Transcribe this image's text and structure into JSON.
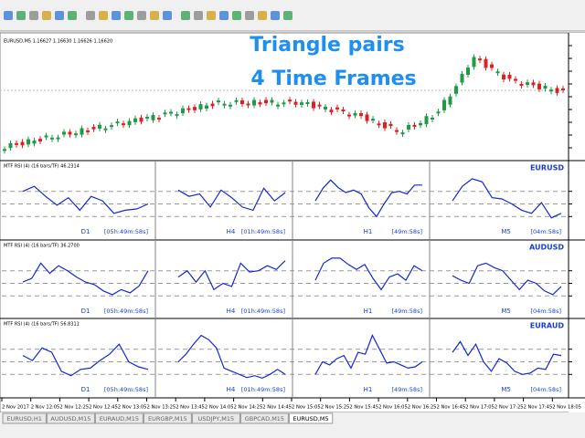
{
  "main_chart": {
    "header": "EURUSD,M5  1.16627 1.16630 1.16626 1.16620",
    "overlay_title": [
      "Triangle pairs",
      "4 Time Frames"
    ]
  },
  "rsi_ylim": [
    0,
    100
  ],
  "rsi_levels": [
    30,
    50,
    70
  ],
  "rsi_panes": [
    {
      "header": "MTF RSI (4) (16 bars/TF) 46.2314",
      "pair": "EURUSD",
      "cells": [
        {
          "timeframe": "D1",
          "timer": "[05h:49m:58s]",
          "values": [
            70,
            78,
            62,
            48,
            60,
            40,
            62,
            55,
            35,
            40,
            42,
            50
          ]
        },
        {
          "timeframe": "H4",
          "timer": "[01h:49m:58s]",
          "values": [
            72,
            62,
            66,
            45,
            72,
            60,
            45,
            40,
            75,
            55,
            68
          ]
        },
        {
          "timeframe": "H1",
          "timer": "[49m:58s]",
          "values": [
            55,
            75,
            88,
            76,
            68,
            72,
            66,
            44,
            30,
            50,
            68,
            70,
            66,
            80,
            80
          ]
        },
        {
          "timeframe": "M5",
          "timer": "[04m:58s]",
          "values": [
            55,
            78,
            90,
            85,
            60,
            58,
            50,
            40,
            35,
            52,
            28,
            35
          ]
        }
      ]
    },
    {
      "header": "MTF RSI (4) (16 bars/TF) 36.2700",
      "pair": "AUDUSD",
      "cells": [
        {
          "timeframe": "D1",
          "timer": "[05h:49m:58s]",
          "values": [
            52,
            58,
            82,
            66,
            78,
            70,
            60,
            52,
            48,
            38,
            32,
            40,
            35,
            46,
            70
          ]
        },
        {
          "timeframe": "H4",
          "timer": "[01h:49m:58s]",
          "values": [
            60,
            70,
            52,
            70,
            40,
            50,
            45,
            82,
            68,
            70,
            78,
            72,
            86
          ]
        },
        {
          "timeframe": "H1",
          "timer": "[49m:58s]",
          "values": [
            55,
            82,
            90,
            90,
            80,
            72,
            80,
            58,
            40,
            60,
            65,
            55,
            78,
            70
          ]
        },
        {
          "timeframe": "M5",
          "timer": "[04m:58s]",
          "values": [
            62,
            55,
            50,
            78,
            82,
            75,
            70,
            55,
            40,
            55,
            50,
            38,
            32,
            45
          ]
        }
      ]
    },
    {
      "header": "MTF RSI (4) (16 bars/TF) 56.8311",
      "pair": "EURAUD",
      "cells": [
        {
          "timeframe": "D1",
          "timer": "[05h:49m:58s]",
          "values": [
            60,
            52,
            72,
            65,
            35,
            28,
            38,
            40,
            52,
            62,
            78,
            50,
            42,
            38
          ]
        },
        {
          "timeframe": "H4",
          "timer": "[01h:49m:58s]",
          "values": [
            50,
            62,
            78,
            92,
            85,
            72,
            40,
            35,
            30,
            25,
            28,
            24,
            30,
            38,
            30
          ]
        },
        {
          "timeframe": "H1",
          "timer": "[49m:58s]",
          "values": [
            30,
            50,
            45,
            55,
            60,
            40,
            65,
            62,
            92,
            70,
            48,
            50,
            45,
            40,
            42,
            50
          ]
        },
        {
          "timeframe": "M5",
          "timer": "[04m:58s]",
          "values": [
            65,
            82,
            60,
            78,
            50,
            35,
            55,
            48,
            35,
            30,
            32,
            40,
            38,
            62,
            60
          ]
        }
      ]
    }
  ],
  "time_axis": [
    "2 Nov 2017",
    "2 Nov 12:05",
    "2 Nov 12:25",
    "2 Nov 12:45",
    "2 Nov 13:05",
    "2 Nov 13:25",
    "2 Nov 13:45",
    "2 Nov 14:05",
    "2 Nov 14:25",
    "2 Nov 14:45",
    "2 Nov 15:05",
    "2 Nov 15:25",
    "2 Nov 15:45",
    "2 Nov 16:05",
    "2 Nov 16:25",
    "2 Nov 16:45",
    "2 Nov 17:05",
    "2 Nov 17:25",
    "2 Nov 17:45",
    "2 Nov 18:05"
  ],
  "tabs": [
    "EURUSD,H1",
    "AUDUSD,M15",
    "EURAUD,M15",
    "EURGBP,M15",
    "USDJPY,M15",
    "GBPCAD,M15",
    "EURUSD,M5"
  ]
}
